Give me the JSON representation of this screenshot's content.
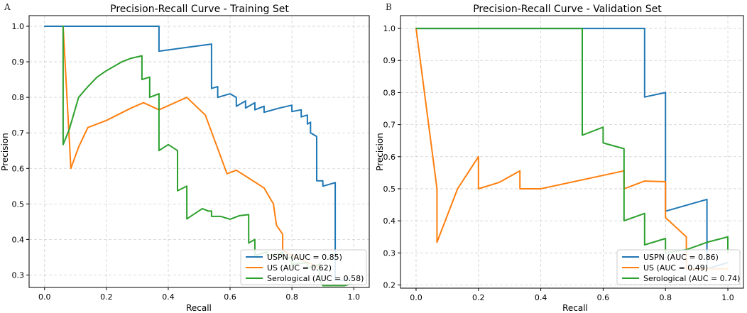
{
  "figure": {
    "panel_labels": [
      "A",
      "B"
    ]
  },
  "chart_data": [
    {
      "type": "line",
      "panel": "A",
      "title": "Precision-Recall Curve - Training Set",
      "xlabel": "Recall",
      "ylabel": "Precision",
      "xlim": [
        -0.05,
        1.05
      ],
      "ylim": [
        0.265,
        1.03
      ],
      "xticks": [
        0.0,
        0.2,
        0.4,
        0.6,
        0.8,
        1.0
      ],
      "xtick_labels": [
        "0.0",
        "0.2",
        "0.4",
        "0.6",
        "0.8",
        "1.0"
      ],
      "yticks": [
        0.3,
        0.4,
        0.5,
        0.6,
        0.7,
        0.8,
        0.9,
        1.0
      ],
      "ytick_labels": [
        "0.3",
        "0.4",
        "0.5",
        "0.6",
        "0.7",
        "0.8",
        "0.9",
        "1.0"
      ],
      "grid": true,
      "legend_position": "lower-right",
      "series": [
        {
          "name": "USPN",
          "label": "USPN (AUC = 0.85)",
          "color": "#1f77b4",
          "points": [
            [
              0.0,
              1.0
            ],
            [
              0.06,
              1.0
            ],
            [
              0.37,
              1.0
            ],
            [
              0.37,
              0.93
            ],
            [
              0.54,
              0.95
            ],
            [
              0.54,
              0.825
            ],
            [
              0.56,
              0.83
            ],
            [
              0.56,
              0.8
            ],
            [
              0.6,
              0.81
            ],
            [
              0.62,
              0.8
            ],
            [
              0.62,
              0.775
            ],
            [
              0.65,
              0.79
            ],
            [
              0.65,
              0.77
            ],
            [
              0.68,
              0.785
            ],
            [
              0.68,
              0.765
            ],
            [
              0.71,
              0.775
            ],
            [
              0.71,
              0.758
            ],
            [
              0.76,
              0.77
            ],
            [
              0.8,
              0.778
            ],
            [
              0.8,
              0.76
            ],
            [
              0.83,
              0.765
            ],
            [
              0.83,
              0.745
            ],
            [
              0.85,
              0.75
            ],
            [
              0.85,
              0.725
            ],
            [
              0.86,
              0.73
            ],
            [
              0.86,
              0.7
            ],
            [
              0.88,
              0.69
            ],
            [
              0.88,
              0.565
            ],
            [
              0.9,
              0.565
            ],
            [
              0.9,
              0.55
            ],
            [
              0.92,
              0.555
            ],
            [
              0.94,
              0.56
            ],
            [
              0.94,
              0.285
            ],
            [
              0.97,
              0.285
            ],
            [
              0.99,
              0.29
            ]
          ]
        },
        {
          "name": "US",
          "label": "US (AUC = 0.62)",
          "color": "#ff7f0e",
          "points": [
            [
              0.06,
              1.0
            ],
            [
              0.085,
              0.6
            ],
            [
              0.11,
              0.66
            ],
            [
              0.14,
              0.715
            ],
            [
              0.2,
              0.735
            ],
            [
              0.28,
              0.77
            ],
            [
              0.32,
              0.785
            ],
            [
              0.37,
              0.765
            ],
            [
              0.46,
              0.8
            ],
            [
              0.52,
              0.75
            ],
            [
              0.59,
              0.585
            ],
            [
              0.62,
              0.595
            ],
            [
              0.71,
              0.545
            ],
            [
              0.74,
              0.5
            ],
            [
              0.75,
              0.44
            ],
            [
              0.77,
              0.415
            ],
            [
              0.77,
              0.37
            ],
            [
              0.8,
              0.355
            ],
            [
              0.89,
              0.32
            ],
            [
              0.89,
              0.335
            ]
          ]
        },
        {
          "name": "Serological",
          "label": "Serological (AUC = 0.58)",
          "color": "#2ca02c",
          "points": [
            [
              0.06,
              1.0
            ],
            [
              0.06,
              0.667
            ],
            [
              0.08,
              0.71
            ],
            [
              0.11,
              0.8
            ],
            [
              0.14,
              0.83
            ],
            [
              0.17,
              0.857
            ],
            [
              0.2,
              0.875
            ],
            [
              0.25,
              0.9
            ],
            [
              0.28,
              0.91
            ],
            [
              0.315,
              0.917
            ],
            [
              0.315,
              0.85
            ],
            [
              0.34,
              0.857
            ],
            [
              0.34,
              0.8
            ],
            [
              0.37,
              0.81
            ],
            [
              0.37,
              0.65
            ],
            [
              0.4,
              0.667
            ],
            [
              0.43,
              0.65
            ],
            [
              0.43,
              0.537
            ],
            [
              0.46,
              0.55
            ],
            [
              0.46,
              0.458
            ],
            [
              0.51,
              0.487
            ],
            [
              0.53,
              0.48
            ],
            [
              0.54,
              0.48
            ],
            [
              0.54,
              0.465
            ],
            [
              0.57,
              0.465
            ],
            [
              0.6,
              0.457
            ],
            [
              0.63,
              0.467
            ],
            [
              0.66,
              0.47
            ],
            [
              0.66,
              0.39
            ],
            [
              0.68,
              0.4
            ],
            [
              0.68,
              0.355
            ],
            [
              0.72,
              0.365
            ],
            [
              0.72,
              0.355
            ],
            [
              0.76,
              0.36
            ],
            [
              0.77,
              0.365
            ],
            [
              0.77,
              0.345
            ],
            [
              0.8,
              0.35
            ],
            [
              0.8,
              0.33
            ],
            [
              0.85,
              0.335
            ],
            [
              0.85,
              0.32
            ],
            [
              0.89,
              0.33
            ],
            [
              0.89,
              0.285
            ],
            [
              0.9,
              0.27
            ],
            [
              0.95,
              0.27
            ],
            [
              0.97,
              0.27
            ],
            [
              0.99,
              0.275
            ]
          ]
        }
      ]
    },
    {
      "type": "line",
      "panel": "B",
      "title": "Precision-Recall Curve - Validation Set",
      "xlabel": "Recall",
      "ylabel": "Precision",
      "xlim": [
        -0.05,
        1.05
      ],
      "ylim": [
        0.19,
        1.04
      ],
      "xticks": [
        0.0,
        0.2,
        0.4,
        0.6,
        0.8,
        1.0
      ],
      "xtick_labels": [
        "0.0",
        "0.2",
        "0.4",
        "0.6",
        "0.8",
        "1.0"
      ],
      "yticks": [
        0.2,
        0.3,
        0.4,
        0.5,
        0.6,
        0.7,
        0.8,
        0.9,
        1.0
      ],
      "ytick_labels": [
        "0.2",
        "0.3",
        "0.4",
        "0.5",
        "0.6",
        "0.7",
        "0.8",
        "0.9",
        "1.0"
      ],
      "grid": true,
      "legend_position": "lower-right",
      "series": [
        {
          "name": "USPN",
          "label": "USPN (AUC = 0.86)",
          "color": "#1f77b4",
          "points": [
            [
              0.0,
              1.0
            ],
            [
              0.733,
              1.0
            ],
            [
              0.733,
              0.786
            ],
            [
              0.8,
              0.8
            ],
            [
              0.8,
              0.43
            ],
            [
              0.933,
              0.467
            ],
            [
              0.933,
              0.25
            ],
            [
              1.0,
              0.27
            ]
          ]
        },
        {
          "name": "US",
          "label": "US (AUC = 0.49)",
          "color": "#ff7f0e",
          "points": [
            [
              0.0,
              1.0
            ],
            [
              0.067,
              0.5
            ],
            [
              0.067,
              0.333
            ],
            [
              0.133,
              0.5
            ],
            [
              0.2,
              0.6
            ],
            [
              0.2,
              0.5
            ],
            [
              0.267,
              0.52
            ],
            [
              0.333,
              0.556
            ],
            [
              0.333,
              0.5
            ],
            [
              0.4,
              0.5
            ],
            [
              0.667,
              0.556
            ],
            [
              0.667,
              0.5
            ],
            [
              0.733,
              0.524
            ],
            [
              0.8,
              0.522
            ],
            [
              0.8,
              0.41
            ],
            [
              0.867,
              0.35
            ],
            [
              0.867,
              0.25
            ],
            [
              1.0,
              0.25
            ]
          ]
        },
        {
          "name": "Serological",
          "label": "Serological (AUC = 0.74)",
          "color": "#2ca02c",
          "points": [
            [
              0.0,
              1.0
            ],
            [
              0.533,
              1.0
            ],
            [
              0.533,
              0.667
            ],
            [
              0.6,
              0.692
            ],
            [
              0.6,
              0.643
            ],
            [
              0.667,
              0.625
            ],
            [
              0.667,
              0.4
            ],
            [
              0.733,
              0.423
            ],
            [
              0.733,
              0.325
            ],
            [
              0.8,
              0.345
            ],
            [
              0.8,
              0.3
            ],
            [
              0.867,
              0.31
            ],
            [
              0.933,
              0.333
            ],
            [
              1.0,
              0.35
            ],
            [
              1.0,
              0.3
            ]
          ]
        }
      ]
    }
  ]
}
